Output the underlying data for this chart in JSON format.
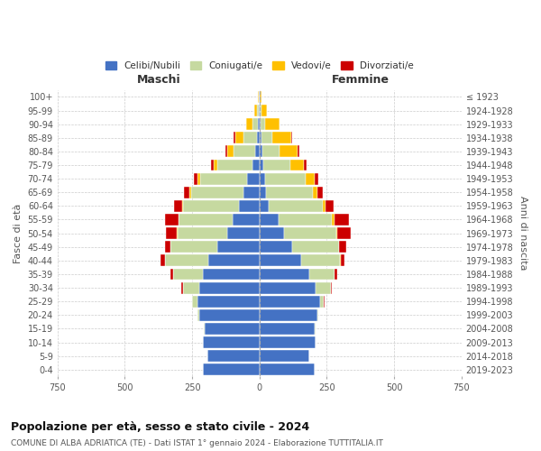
{
  "age_groups": [
    "0-4",
    "5-9",
    "10-14",
    "15-19",
    "20-24",
    "25-29",
    "30-34",
    "35-39",
    "40-44",
    "45-49",
    "50-54",
    "55-59",
    "60-64",
    "65-69",
    "70-74",
    "75-79",
    "80-84",
    "85-89",
    "90-94",
    "95-99",
    "100+"
  ],
  "birth_years": [
    "2019-2023",
    "2014-2018",
    "2009-2013",
    "2004-2008",
    "1999-2003",
    "1994-1998",
    "1989-1993",
    "1984-1988",
    "1979-1983",
    "1974-1978",
    "1969-1973",
    "1964-1968",
    "1959-1963",
    "1954-1958",
    "1949-1953",
    "1944-1948",
    "1939-1943",
    "1934-1938",
    "1929-1933",
    "1924-1928",
    "≤ 1923"
  ],
  "colors": {
    "celibi": "#4472c4",
    "coniugati": "#c6d9a0",
    "vedovi": "#ffc000",
    "divorziati": "#cc0000"
  },
  "maschi": {
    "celibi": [
      210,
      195,
      210,
      205,
      225,
      230,
      225,
      210,
      190,
      155,
      120,
      100,
      75,
      60,
      45,
      25,
      15,
      10,
      5,
      3,
      2
    ],
    "coniugati": [
      0,
      0,
      0,
      2,
      5,
      20,
      60,
      110,
      160,
      175,
      185,
      200,
      210,
      195,
      175,
      130,
      80,
      50,
      20,
      5,
      0
    ],
    "vedovi": [
      0,
      0,
      0,
      0,
      0,
      0,
      0,
      0,
      1,
      1,
      2,
      2,
      3,
      5,
      10,
      15,
      25,
      30,
      25,
      10,
      3
    ],
    "divorziati": [
      0,
      0,
      0,
      0,
      0,
      2,
      5,
      10,
      15,
      20,
      40,
      50,
      30,
      20,
      15,
      10,
      8,
      5,
      0,
      0,
      0
    ]
  },
  "femmine": {
    "celibi": [
      205,
      185,
      210,
      205,
      215,
      225,
      210,
      185,
      155,
      120,
      90,
      70,
      35,
      25,
      20,
      15,
      10,
      8,
      5,
      2,
      2
    ],
    "coniugati": [
      0,
      0,
      0,
      2,
      5,
      15,
      55,
      95,
      145,
      175,
      195,
      200,
      200,
      175,
      150,
      100,
      65,
      40,
      15,
      5,
      0
    ],
    "vedovi": [
      0,
      0,
      0,
      0,
      0,
      0,
      0,
      0,
      1,
      2,
      5,
      8,
      10,
      15,
      35,
      50,
      65,
      70,
      55,
      20,
      5
    ],
    "divorziati": [
      0,
      0,
      0,
      0,
      0,
      2,
      5,
      10,
      15,
      25,
      50,
      55,
      30,
      20,
      15,
      10,
      8,
      5,
      0,
      0,
      0
    ]
  },
  "title": "Popolazione per età, sesso e stato civile - 2024",
  "subtitle": "COMUNE DI ALBA ADRIATICA (TE) - Dati ISTAT 1° gennaio 2024 - Elaborazione TUTTITALIA.IT",
  "ylabel_left": "Fasce di età",
  "ylabel_right": "Anni di nascita",
  "xlabel_maschi": "Maschi",
  "xlabel_femmine": "Femmine",
  "legend_labels": [
    "Celibi/Nubili",
    "Coniugati/e",
    "Vedovi/e",
    "Divorziati/e"
  ],
  "xlim": 750,
  "background_color": "#ffffff",
  "grid_color": "#cccccc"
}
